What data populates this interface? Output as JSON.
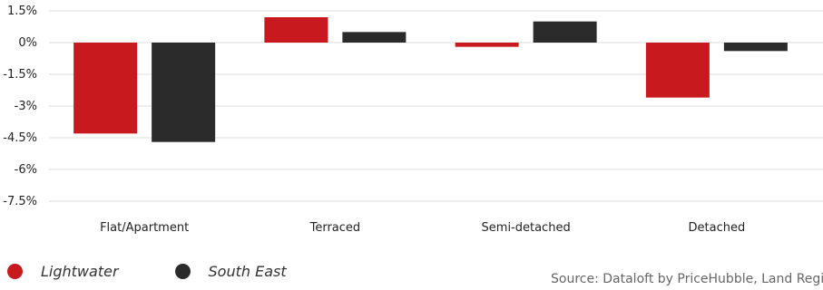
{
  "chart_data": {
    "type": "bar",
    "categories": [
      "Flat/Apartment",
      "Terraced",
      "Semi-detached",
      "Detached"
    ],
    "series": [
      {
        "name": "Lightwater",
        "color": "#c8191e",
        "values": [
          -4.3,
          1.2,
          -0.2,
          -2.6
        ]
      },
      {
        "name": "South East",
        "color": "#2b2b2b",
        "values": [
          -4.7,
          0.5,
          1.0,
          -0.4
        ]
      }
    ],
    "yticks": [
      1.5,
      0,
      -1.5,
      -3,
      -4.5,
      -6,
      -7.5
    ],
    "ytick_labels": [
      "1.5%",
      "0%",
      "-1.5%",
      "-3%",
      "-4.5%",
      "-6%",
      "-7.5%"
    ],
    "ylim": [
      -7.5,
      1.5
    ],
    "grid": true,
    "legend": "bottom-left"
  },
  "source": "Source: Dataloft by PriceHubble, Land Registry"
}
